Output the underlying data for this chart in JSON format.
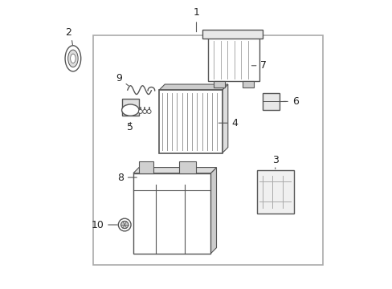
{
  "bg_color": "#ffffff",
  "border_color": "#aaaaaa",
  "line_color": "#555555",
  "text_color": "#222222"
}
